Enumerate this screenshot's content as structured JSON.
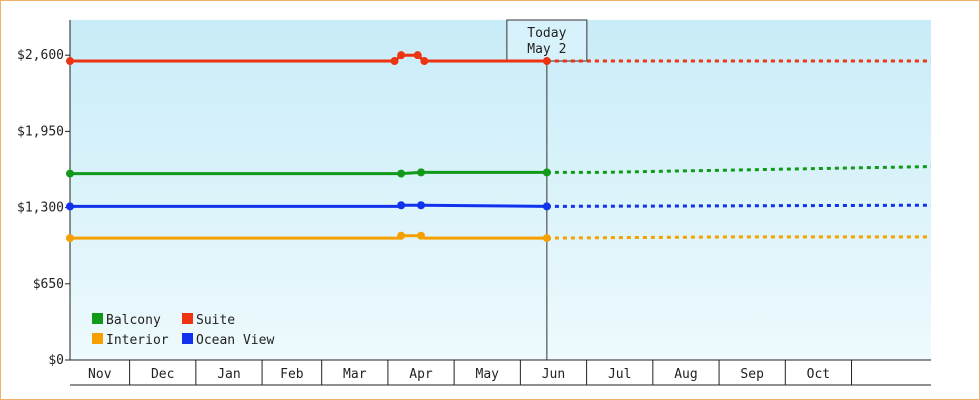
{
  "chart_data": {
    "type": "line",
    "today_label": [
      "Today",
      "May 2"
    ],
    "y_ticks": [
      {
        "value": 0,
        "label": "$0"
      },
      {
        "value": 650,
        "label": "$650"
      },
      {
        "value": 1300,
        "label": "$1,300"
      },
      {
        "value": 1950,
        "label": "$1,950"
      },
      {
        "value": 2600,
        "label": "$2,600"
      }
    ],
    "ylim": [
      0,
      2900
    ],
    "months": [
      "Nov",
      "Dec",
      "Jan",
      "Feb",
      "Mar",
      "Apr",
      "May",
      "Jun",
      "Jul",
      "Aug",
      "Sep",
      "Oct"
    ],
    "series": [
      {
        "name": "Suite",
        "color": "#ee3311",
        "history": [
          [
            0,
            2550
          ],
          [
            4.9,
            2550
          ],
          [
            5.0,
            2600
          ],
          [
            5.25,
            2600
          ],
          [
            5.35,
            2550
          ],
          [
            7.2,
            2550
          ]
        ],
        "markers": [
          [
            0,
            2550
          ],
          [
            4.9,
            2550
          ],
          [
            5.0,
            2600
          ],
          [
            5.25,
            2600
          ],
          [
            5.35,
            2550
          ],
          [
            7.2,
            2550
          ]
        ],
        "forecast": [
          [
            7.2,
            2550
          ],
          [
            13.0,
            2550
          ]
        ]
      },
      {
        "name": "Balcony",
        "color": "#11991a",
        "history": [
          [
            0,
            1590
          ],
          [
            5.0,
            1590
          ],
          [
            5.3,
            1600
          ],
          [
            7.2,
            1600
          ]
        ],
        "markers": [
          [
            0,
            1590
          ],
          [
            5.0,
            1590
          ],
          [
            5.3,
            1600
          ],
          [
            7.2,
            1600
          ]
        ],
        "forecast": [
          [
            7.2,
            1600
          ],
          [
            8.0,
            1600
          ],
          [
            9.0,
            1610
          ],
          [
            10.0,
            1620
          ],
          [
            11.0,
            1630
          ],
          [
            12.0,
            1640
          ],
          [
            13.0,
            1650
          ]
        ]
      },
      {
        "name": "Ocean View",
        "color": "#1133ee",
        "history": [
          [
            0,
            1310
          ],
          [
            5.0,
            1310
          ],
          [
            5.05,
            1320
          ],
          [
            5.3,
            1320
          ],
          [
            7.2,
            1310
          ]
        ],
        "markers": [
          [
            0,
            1310
          ],
          [
            5.0,
            1320
          ],
          [
            5.3,
            1320
          ],
          [
            7.2,
            1310
          ]
        ],
        "forecast": [
          [
            7.2,
            1310
          ],
          [
            13.0,
            1320
          ]
        ]
      },
      {
        "name": "Interior",
        "color": "#f5a000",
        "history": [
          [
            0,
            1040
          ],
          [
            5.0,
            1040
          ],
          [
            5.05,
            1060
          ],
          [
            5.3,
            1060
          ],
          [
            5.35,
            1040
          ],
          [
            7.2,
            1040
          ]
        ],
        "markers": [
          [
            0,
            1040
          ],
          [
            5.0,
            1060
          ],
          [
            5.3,
            1060
          ],
          [
            7.2,
            1040
          ]
        ],
        "forecast": [
          [
            7.2,
            1040
          ],
          [
            10.0,
            1050
          ],
          [
            13.0,
            1050
          ]
        ]
      }
    ],
    "legend": [
      {
        "name": "Balcony",
        "color": "#11991a"
      },
      {
        "name": "Suite",
        "color": "#ee3311"
      },
      {
        "name": "Interior",
        "color": "#f5a000"
      },
      {
        "name": "Ocean View",
        "color": "#1133ee"
      }
    ],
    "today_x": 7.2,
    "legend_placement": "bottom-left",
    "grid": false
  }
}
